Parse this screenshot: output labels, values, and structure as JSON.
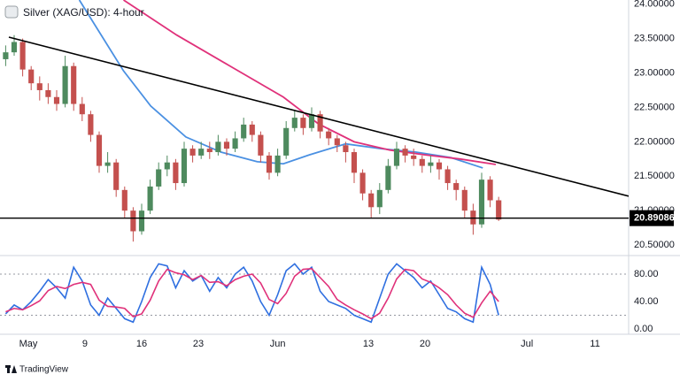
{
  "chart_data": [
    {
      "type": "candlestick",
      "title": "Silver (XAG/USD): 4-hour",
      "up_color": "#4e8a5e",
      "down_color": "#c4504e",
      "xlim": [
        -2.5,
        52.97
      ],
      "ylim": [
        20.36,
        24.06
      ],
      "yticks": [
        {
          "value": 20.5,
          "label": "20.50000"
        },
        {
          "value": 21,
          "label": "21.00000"
        },
        {
          "value": 21.5,
          "label": "21.50000"
        },
        {
          "value": 22,
          "label": "22.00000"
        },
        {
          "value": 22.5,
          "label": "22.50000"
        },
        {
          "value": 23,
          "label": "23.00000"
        },
        {
          "value": 23.5,
          "label": "23.50000"
        },
        {
          "value": 24,
          "label": "24.00000"
        }
      ],
      "x": [
        -2,
        -1.25,
        -0.5,
        0.25,
        1,
        1.75,
        2.5,
        3.25,
        4,
        4.75,
        5.5,
        6.25,
        7,
        7.75,
        8.5,
        9.25,
        10,
        10.75,
        11.5,
        12.25,
        13,
        13.75,
        14.5,
        15.25,
        16,
        16.75,
        17.5,
        18.25,
        19,
        19.75,
        20.5,
        21.25,
        22,
        22.75,
        23.5,
        24.25,
        25,
        25.75,
        26.5,
        27.25,
        28,
        28.75,
        29.5,
        30.25,
        31,
        31.75,
        32.5,
        33.25,
        34,
        34.75,
        35.5,
        36.25,
        37,
        37.75,
        38.5,
        39.25,
        40,
        40.75,
        41.5
      ],
      "open": [
        23.2,
        23.3,
        23.45,
        23.05,
        22.85,
        22.75,
        22.65,
        22.55,
        23.1,
        22.55,
        22.4,
        22.1,
        21.65,
        21.7,
        21.3,
        21.0,
        20.7,
        21.0,
        21.35,
        21.6,
        21.7,
        21.4,
        21.9,
        21.8,
        21.9,
        21.85,
        22.0,
        21.9,
        22.05,
        22.25,
        22.1,
        21.8,
        21.55,
        21.8,
        22.2,
        22.35,
        22.2,
        22.4,
        22.15,
        22.05,
        21.95,
        21.85,
        21.55,
        21.25,
        21.05,
        21.3,
        21.65,
        21.9,
        21.8,
        21.75,
        21.65,
        21.7,
        21.6,
        21.4,
        21.3,
        21.0,
        20.8,
        21.45,
        21.15
      ],
      "high": [
        23.4,
        23.55,
        23.5,
        23.1,
        22.95,
        22.85,
        22.75,
        23.25,
        23.15,
        22.65,
        22.45,
        22.15,
        21.85,
        21.75,
        21.35,
        21.05,
        21.1,
        21.45,
        21.7,
        21.8,
        21.75,
        22.0,
        21.95,
        22.0,
        22.0,
        22.1,
        22.05,
        22.15,
        22.35,
        22.3,
        22.15,
        21.85,
        21.9,
        22.3,
        22.45,
        22.4,
        22.5,
        22.45,
        22.2,
        22.1,
        22.0,
        21.9,
        21.6,
        21.3,
        21.4,
        21.75,
        22.0,
        21.95,
        21.9,
        21.8,
        21.8,
        21.75,
        21.65,
        21.45,
        21.35,
        21.1,
        21.55,
        21.5,
        21.2
      ],
      "low": [
        23.1,
        23.25,
        22.95,
        22.75,
        22.6,
        22.55,
        22.45,
        22.5,
        22.45,
        22.3,
        22.0,
        21.55,
        21.55,
        21.2,
        20.9,
        20.55,
        20.65,
        20.95,
        21.3,
        21.5,
        21.3,
        21.35,
        21.7,
        21.75,
        21.75,
        21.8,
        21.8,
        21.85,
        22.0,
        22.0,
        21.7,
        21.45,
        21.5,
        21.75,
        22.15,
        22.1,
        22.15,
        22.05,
        21.95,
        21.85,
        21.7,
        21.4,
        21.15,
        20.9,
        20.95,
        21.25,
        21.6,
        21.7,
        21.65,
        21.55,
        21.55,
        21.45,
        21.3,
        21.15,
        20.9,
        20.65,
        20.75,
        21.05,
        20.85
      ],
      "close": [
        23.3,
        23.45,
        23.05,
        22.85,
        22.75,
        22.65,
        22.55,
        23.1,
        22.55,
        22.4,
        22.1,
        21.65,
        21.7,
        21.3,
        21.0,
        20.7,
        21.0,
        21.35,
        21.6,
        21.7,
        21.4,
        21.9,
        21.8,
        21.9,
        21.85,
        22.0,
        21.9,
        22.05,
        22.25,
        22.1,
        21.8,
        21.55,
        21.8,
        22.2,
        22.35,
        22.2,
        22.4,
        22.15,
        22.05,
        21.95,
        21.85,
        21.55,
        21.25,
        21.05,
        21.3,
        21.65,
        21.9,
        21.8,
        21.75,
        21.65,
        21.7,
        21.6,
        21.4,
        21.3,
        21.0,
        20.8,
        21.45,
        21.15,
        20.87
      ],
      "series": [
        {
          "color": "#4a90e2",
          "x": [
            4.5,
            8.4,
            10.8,
            13.9,
            17,
            20.2,
            22.5,
            24.8,
            28,
            31.1,
            34.2,
            37.3,
            40.1
          ],
          "values": [
            24.06,
            23.03,
            22.52,
            22.07,
            21.85,
            21.71,
            21.68,
            21.81,
            21.97,
            21.9,
            21.85,
            21.77,
            21.62
          ]
        },
        {
          "color": "#e0317a",
          "x": [
            8.4,
            13.1,
            17.8,
            22.5,
            25.6,
            28.75,
            31.9,
            35,
            38.1,
            41.25
          ],
          "values": [
            24.06,
            23.55,
            23.1,
            22.65,
            22.26,
            22.0,
            21.88,
            21.81,
            21.75,
            21.67
          ]
        }
      ],
      "trendline": {
        "color": "#000000",
        "x": [
          -1.72,
          52.97
        ],
        "values": [
          23.52,
          21.21
        ]
      },
      "hline": {
        "color": "#000000",
        "value": 20.89086
      }
    },
    {
      "type": "line",
      "xlim": [
        -2.5,
        52.97
      ],
      "ylim": [
        -7.7,
        105.8
      ],
      "yticks": [
        {
          "value": 0,
          "label": "0.00"
        },
        {
          "value": 40,
          "label": "40.00"
        },
        {
          "value": 80,
          "label": "80.00"
        }
      ],
      "levels": [
        20,
        80
      ],
      "xticks": [
        {
          "value": 0,
          "label": "May"
        },
        {
          "value": 5,
          "label": "9"
        },
        {
          "value": 10,
          "label": "16"
        },
        {
          "value": 15,
          "label": "23"
        },
        {
          "value": 22,
          "label": "Jun"
        },
        {
          "value": 30,
          "label": "13"
        },
        {
          "value": 35,
          "label": "20"
        },
        {
          "value": 44,
          "label": "Jul"
        },
        {
          "value": 50,
          "label": "11"
        }
      ],
      "x": [
        -2,
        -1.25,
        -0.5,
        0.25,
        1,
        1.75,
        2.5,
        3.25,
        4,
        4.75,
        5.5,
        6.25,
        7,
        7.75,
        8.5,
        9.25,
        10,
        10.75,
        11.5,
        12.25,
        13,
        13.75,
        14.5,
        15.25,
        16,
        16.75,
        17.5,
        18.25,
        19,
        19.75,
        20.5,
        21.25,
        22,
        22.75,
        23.5,
        24.25,
        25,
        25.75,
        26.5,
        27.25,
        28,
        28.75,
        29.5,
        30.25,
        31,
        31.75,
        32.5,
        33.25,
        34,
        34.75,
        35.5,
        36.25,
        37,
        37.75,
        38.5,
        39.25,
        40,
        40.75,
        41.5
      ],
      "series": [
        {
          "color": "#2f6fe0",
          "values": [
            22,
            35,
            28,
            40,
            55,
            72,
            60,
            45,
            90,
            70,
            35,
            20,
            45,
            30,
            15,
            10,
            40,
            75,
            95,
            92,
            60,
            85,
            70,
            78,
            55,
            75,
            60,
            80,
            90,
            70,
            40,
            20,
            50,
            85,
            95,
            80,
            90,
            55,
            40,
            35,
            30,
            20,
            15,
            10,
            45,
            80,
            95,
            85,
            75,
            60,
            70,
            50,
            30,
            25,
            15,
            10,
            90,
            65,
            20
          ]
        },
        {
          "color": "#e0317a",
          "values": [
            25,
            30,
            28,
            34,
            41,
            56,
            62,
            59,
            65,
            68,
            65,
            42,
            33,
            32,
            30,
            18,
            22,
            42,
            70,
            87,
            82,
            79,
            72,
            78,
            68,
            69,
            63,
            72,
            77,
            80,
            67,
            43,
            37,
            52,
            77,
            87,
            88,
            75,
            62,
            43,
            35,
            28,
            22,
            15,
            23,
            45,
            73,
            87,
            85,
            73,
            68,
            60,
            50,
            35,
            23,
            17,
            38,
            55,
            40
          ]
        }
      ]
    }
  ],
  "brand": "TradingView"
}
